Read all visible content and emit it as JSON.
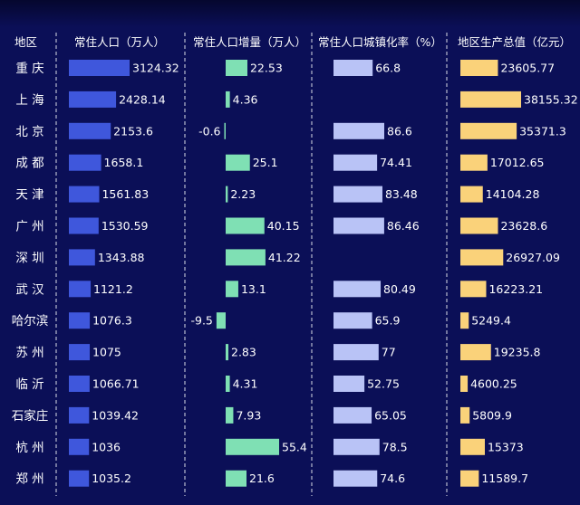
{
  "chart_data": {
    "type": "table",
    "headers": [
      "地区",
      "常住人口（万人）",
      "常住人口增量（万人）",
      "常住人口城镇化率（%）",
      "地区生产总值（亿元）"
    ],
    "colors": {
      "background": "#0b0f57",
      "population": "#3f57dc",
      "increment": "#7fe0b4",
      "urbanization": "#b9c3f6",
      "gdp": "#fad27a"
    },
    "rows": [
      {
        "city": "重 庆",
        "population": 3124.32,
        "population_label": "3124.32",
        "increment": 22.53,
        "increment_label": "22.53",
        "urbanization": 66.8,
        "urbanization_label": "66.8",
        "gdp": 23605.77,
        "gdp_label": "23605.77"
      },
      {
        "city": "上 海",
        "population": 2428.14,
        "population_label": "2428.14",
        "increment": 4.36,
        "increment_label": "4.36",
        "urbanization": null,
        "urbanization_label": "",
        "gdp": 38155.32,
        "gdp_label": "38155.32"
      },
      {
        "city": "北 京",
        "population": 2153.6,
        "population_label": "2153.6",
        "increment": -0.6,
        "increment_label": "-0.6",
        "urbanization": 86.6,
        "urbanization_label": "86.6",
        "gdp": 35371.3,
        "gdp_label": "35371.3"
      },
      {
        "city": "成 都",
        "population": 1658.1,
        "population_label": "1658.1",
        "increment": 25.1,
        "increment_label": "25.1",
        "urbanization": 74.41,
        "urbanization_label": "74.41",
        "gdp": 17012.65,
        "gdp_label": "17012.65"
      },
      {
        "city": "天 津",
        "population": 1561.83,
        "population_label": "1561.83",
        "increment": 2.23,
        "increment_label": "2.23",
        "urbanization": 83.48,
        "urbanization_label": "83.48",
        "gdp": 14104.28,
        "gdp_label": "14104.28"
      },
      {
        "city": "广 州",
        "population": 1530.59,
        "population_label": "1530.59",
        "increment": 40.15,
        "increment_label": "40.15",
        "urbanization": 86.46,
        "urbanization_label": "86.46",
        "gdp": 23628.6,
        "gdp_label": "23628.6"
      },
      {
        "city": "深 圳",
        "population": 1343.88,
        "population_label": "1343.88",
        "increment": 41.22,
        "increment_label": "41.22",
        "urbanization": null,
        "urbanization_label": "",
        "gdp": 26927.09,
        "gdp_label": "26927.09"
      },
      {
        "city": "武 汉",
        "population": 1121.2,
        "population_label": "1121.2",
        "increment": 13.1,
        "increment_label": "13.1",
        "urbanization": 80.49,
        "urbanization_label": "80.49",
        "gdp": 16223.21,
        "gdp_label": "16223.21"
      },
      {
        "city": "哈尔滨",
        "population": 1076.3,
        "population_label": "1076.3",
        "increment": -9.5,
        "increment_label": "-9.5",
        "urbanization": 65.9,
        "urbanization_label": "65.9",
        "gdp": 5249.4,
        "gdp_label": "5249.4"
      },
      {
        "city": "苏 州",
        "population": 1075,
        "population_label": "1075",
        "increment": 2.83,
        "increment_label": "2.83",
        "urbanization": 77,
        "urbanization_label": "77",
        "gdp": 19235.8,
        "gdp_label": "19235.8"
      },
      {
        "city": "临 沂",
        "population": 1066.71,
        "population_label": "1066.71",
        "increment": 4.31,
        "increment_label": "4.31",
        "urbanization": 52.75,
        "urbanization_label": "52.75",
        "gdp": 4600.25,
        "gdp_label": "4600.25"
      },
      {
        "city": "石家庄",
        "population": 1039.42,
        "population_label": "1039.42",
        "increment": 7.93,
        "increment_label": "7.93",
        "urbanization": 65.05,
        "urbanization_label": "65.05",
        "gdp": 5809.9,
        "gdp_label": "5809.9"
      },
      {
        "city": "杭 州",
        "population": 1036,
        "population_label": "1036",
        "increment": 55.4,
        "increment_label": "55.4",
        "urbanization": 78.5,
        "urbanization_label": "78.5",
        "gdp": 15373,
        "gdp_label": "15373"
      },
      {
        "city": "郑 州",
        "population": 1035.2,
        "population_label": "1035.2",
        "increment": 21.6,
        "increment_label": "21.6",
        "urbanization": 74.6,
        "urbanization_label": "74.6",
        "gdp": 11589.7,
        "gdp_label": "11589.7"
      }
    ]
  }
}
